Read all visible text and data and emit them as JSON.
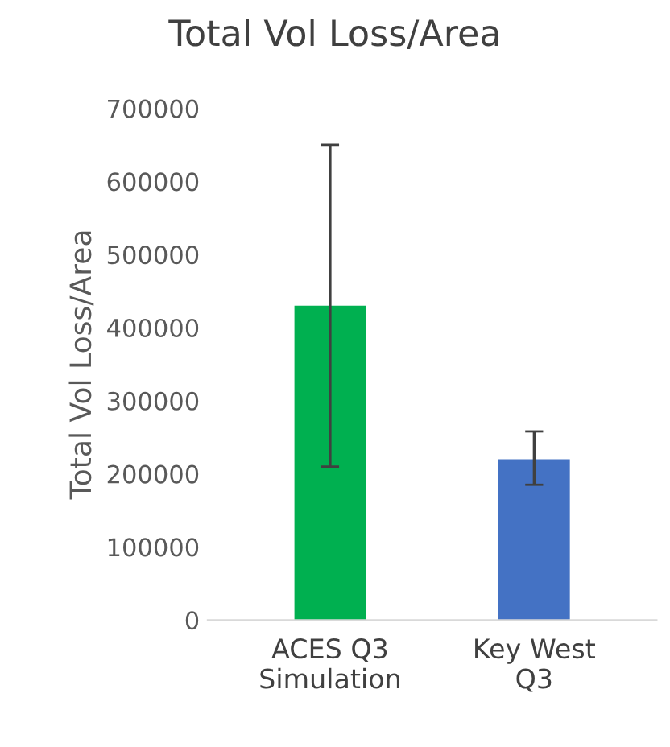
{
  "chart_data": {
    "type": "bar",
    "title": "Total Vol Loss/Area",
    "ylabel": "Total Vol Loss/Area",
    "categories": [
      "ACES Q3\nSimulation",
      "Key West\nQ3"
    ],
    "values": [
      430000,
      220000
    ],
    "colors": [
      "#00b050",
      "#4472c4"
    ],
    "errors": [
      [
        210000,
        650000
      ],
      [
        185000,
        258000
      ]
    ],
    "ylim": [
      0,
      700000
    ],
    "yticks": [
      0,
      100000,
      200000,
      300000,
      400000,
      500000,
      600000,
      700000
    ],
    "grid": false,
    "legend": false
  }
}
